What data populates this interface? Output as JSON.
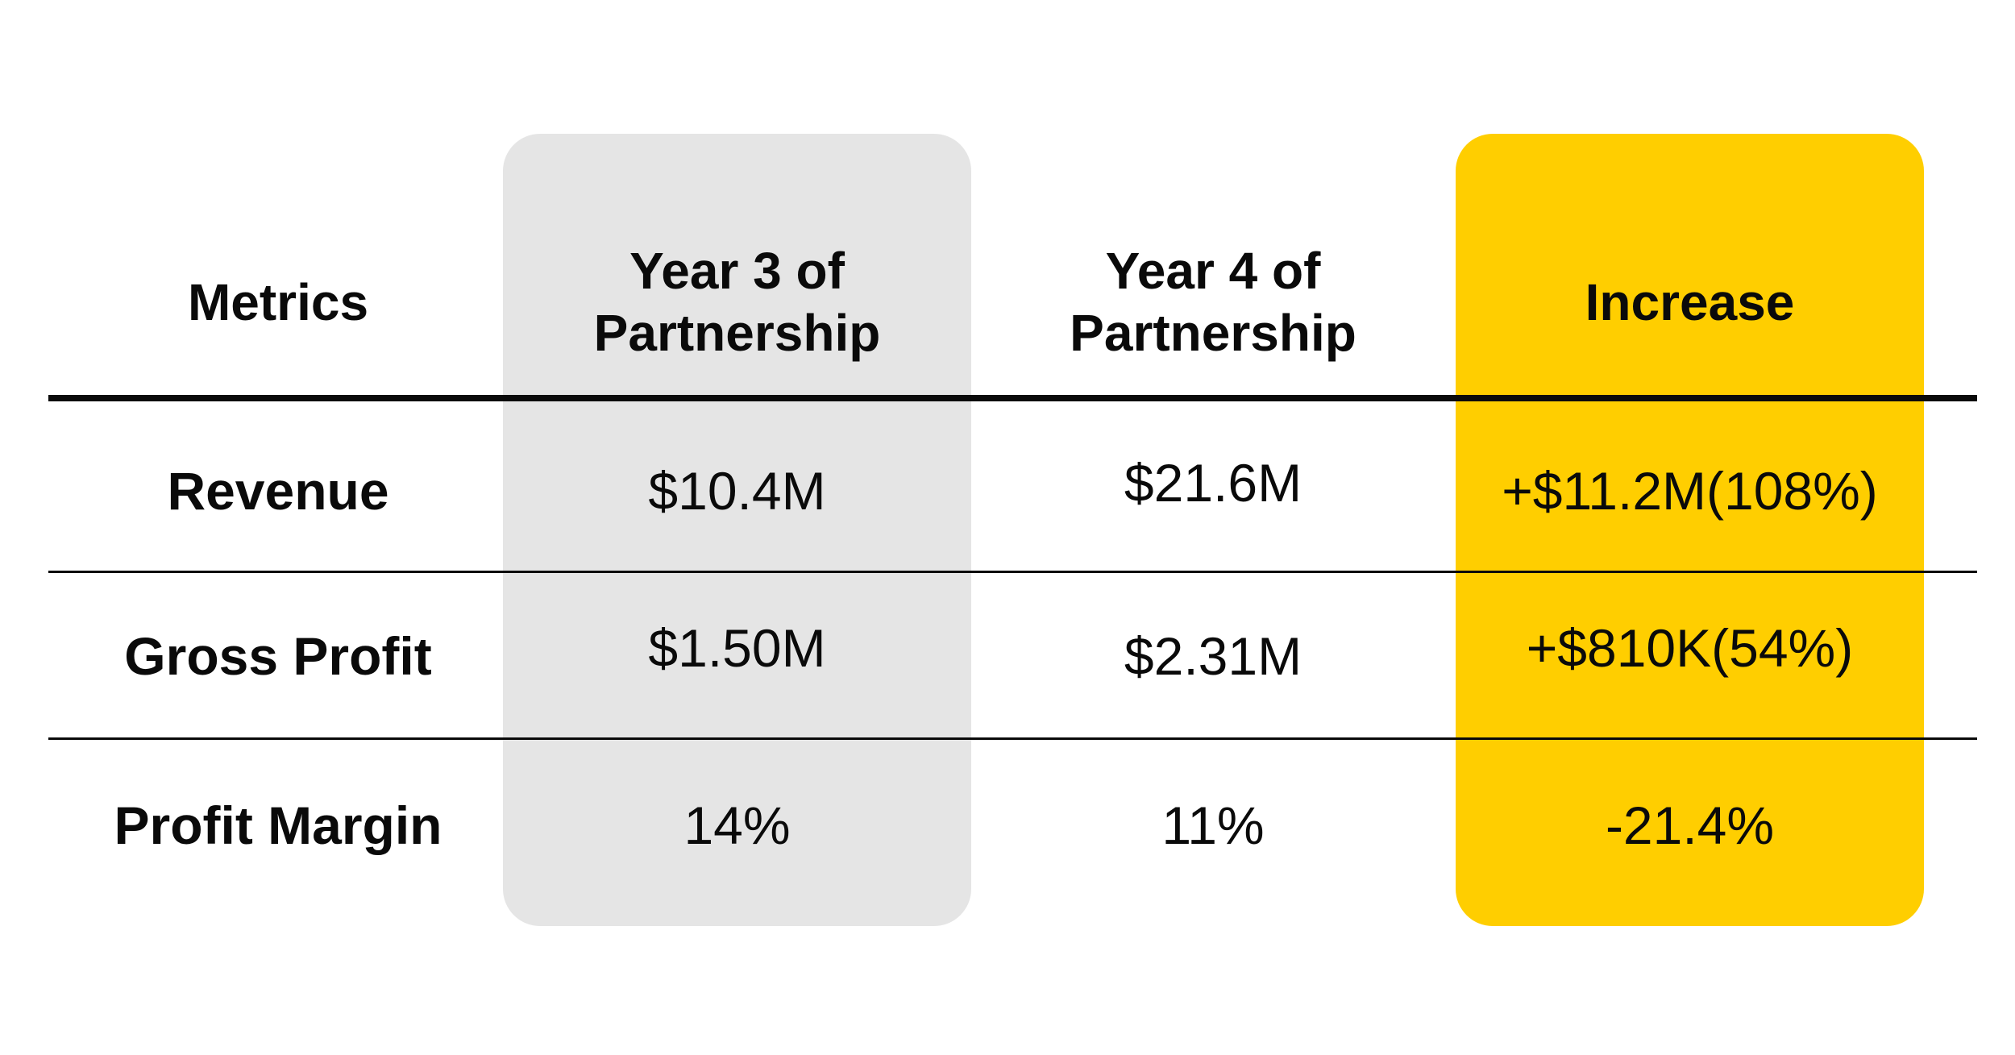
{
  "colors": {
    "year3_column": "#e5e5e5",
    "increase_column": "#ffce00",
    "text": "#0a0a0a",
    "rules": "#0a0a0a"
  },
  "headers": {
    "metrics": "Metrics",
    "year3": "Year 3 of\nPartnership",
    "year4": "Year 4 of\nPartnership",
    "increase": "Increase"
  },
  "rows": [
    {
      "metric": "Revenue",
      "year3": "$10.4M",
      "year4": "$21.6M",
      "increase": "+$11.2M(108%)"
    },
    {
      "metric": "Gross Profit",
      "year3": "$1.50M",
      "year4": "$2.31M",
      "increase": "+$810K(54%)"
    },
    {
      "metric": "Profit Margin",
      "year3": "14%",
      "year4": "11%",
      "increase": "-21.4%"
    }
  ]
}
